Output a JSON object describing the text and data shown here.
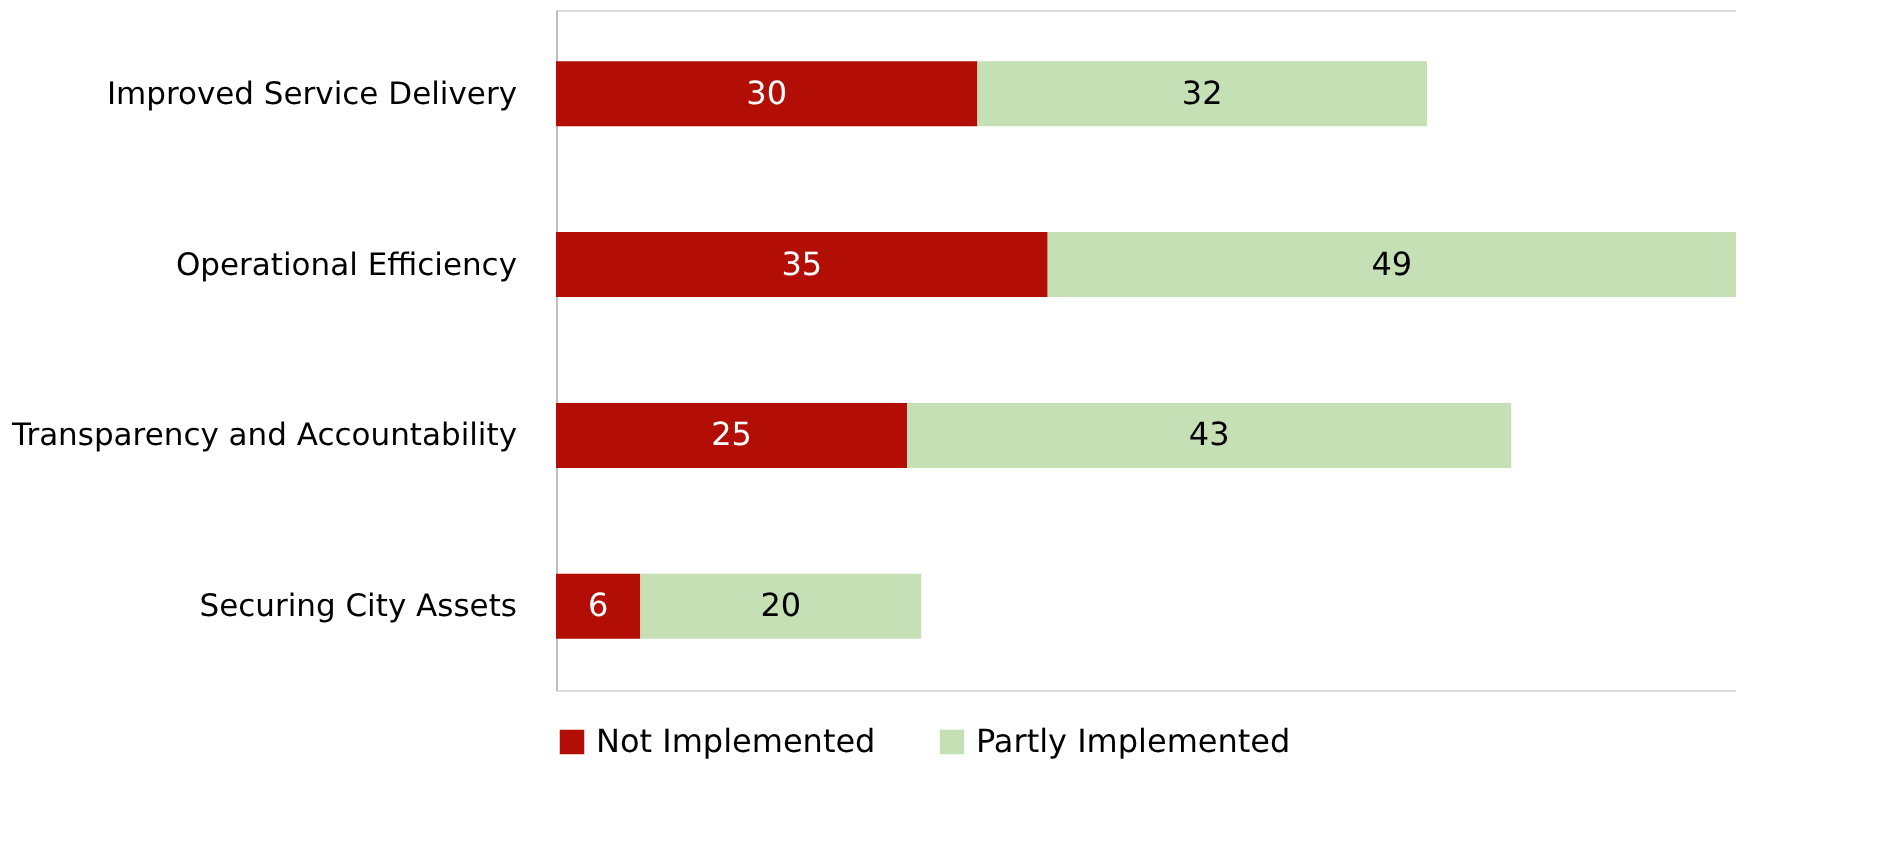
{
  "chart_data": {
    "type": "bar",
    "orientation": "horizontal",
    "stacked": true,
    "data_labels": true,
    "legend": "bottom",
    "grid": false,
    "tick_labels": "y",
    "categories": [
      "Improved Service Delivery",
      "Operational Efficiency",
      "Transparency and Accountability",
      "Securing City Assets"
    ],
    "series": [
      {
        "name": "Not Implemented",
        "color": "#b30e05",
        "values": [
          30,
          35,
          25,
          6
        ]
      },
      {
        "name": "Partly Implemented",
        "color": "#c5e0b4",
        "values": [
          32,
          49,
          43,
          20
        ]
      }
    ]
  }
}
